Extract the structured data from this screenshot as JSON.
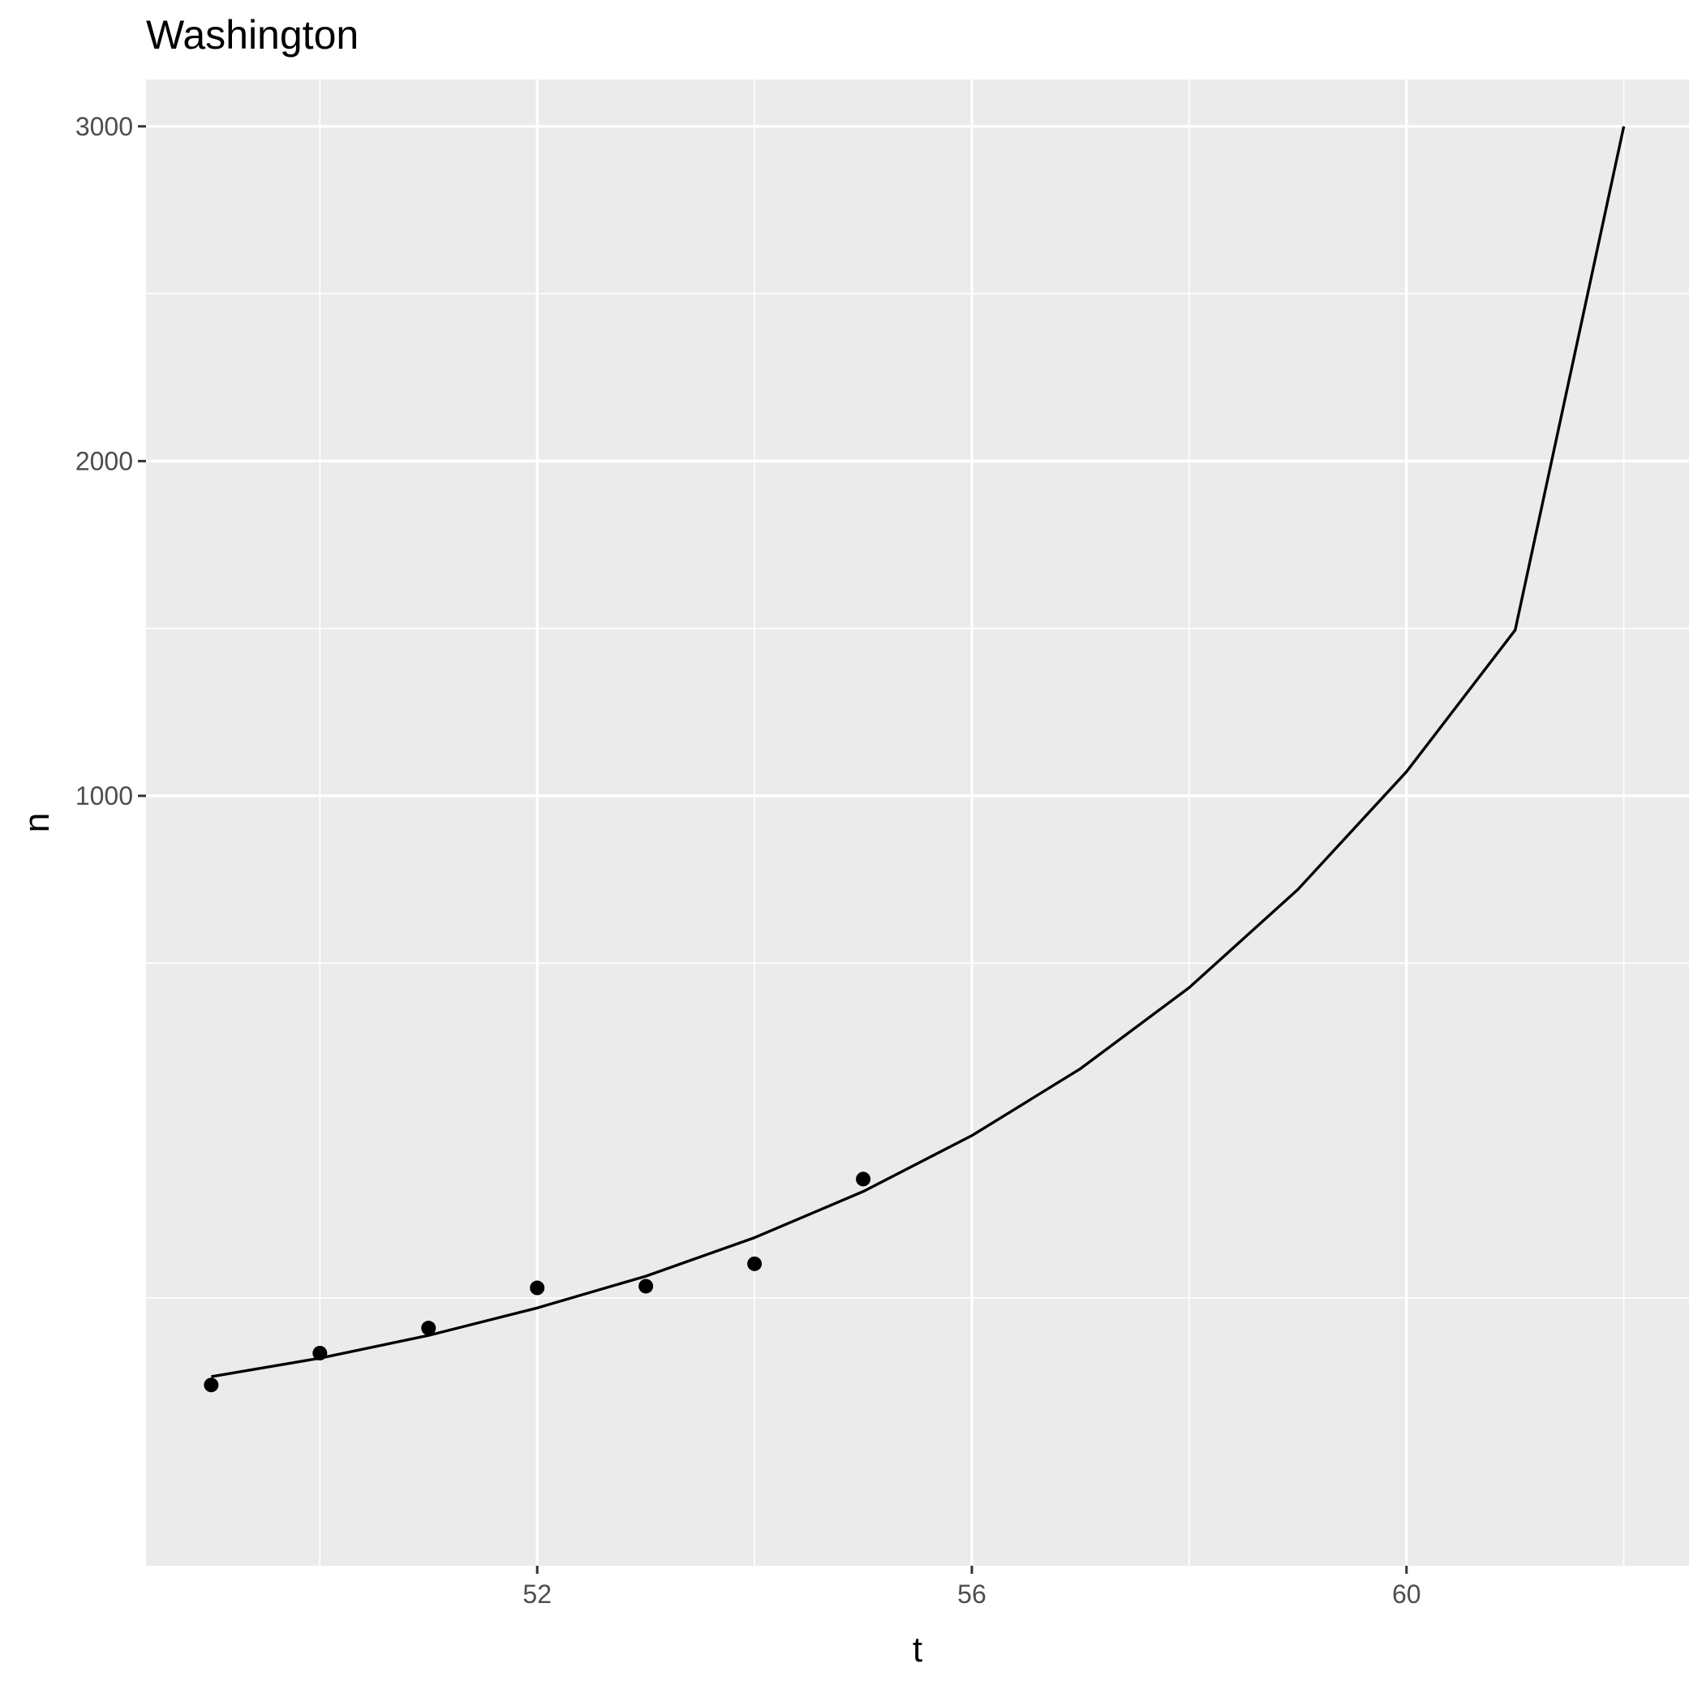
{
  "chart_data": {
    "type": "scatter",
    "title": "Washington",
    "xlabel": "t",
    "ylabel": "n",
    "xlim": [
      48.4,
      62.6
    ],
    "ylim": [
      -1300,
      3140
    ],
    "x_ticks": [
      52,
      56,
      60
    ],
    "y_ticks": [
      1000,
      2000,
      3000
    ],
    "grid": true,
    "colors": {
      "panel": "#ebebeb",
      "grid_major": "#ffffff",
      "mark": "#000000",
      "tick_label": "#4d4d4d"
    },
    "series": [
      {
        "type": "scatter",
        "x": [
          49,
          50,
          51,
          52,
          53,
          54,
          55
        ],
        "y": [
          -760,
          -665,
          -590,
          -470,
          -465,
          -398,
          -145
        ]
      },
      {
        "type": "line",
        "x": [
          49,
          50,
          51,
          52,
          53,
          54,
          55,
          56,
          57,
          58,
          59,
          60,
          61,
          62
        ],
        "y": [
          -735,
          -680,
          -612,
          -530,
          -435,
          -320,
          -182,
          -15,
          185,
          427,
          720,
          1072,
          1495,
          3000
        ]
      }
    ]
  }
}
